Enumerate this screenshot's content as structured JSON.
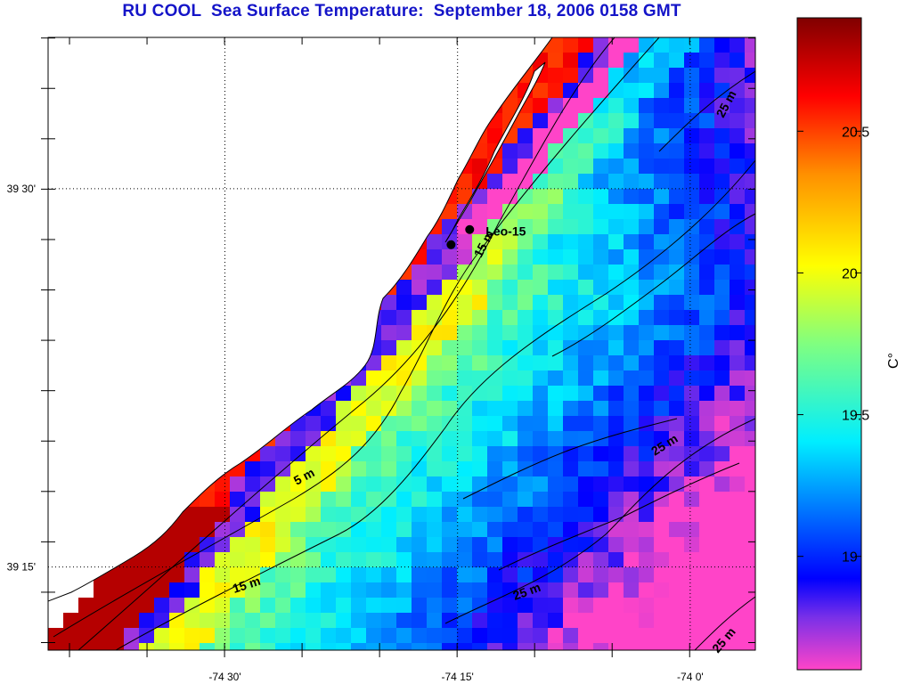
{
  "title": "RU COOL  Sea Surface Temperature:  September 18, 2006 0158 GMT",
  "map": {
    "lon_range": [
      -74.69,
      -73.93
    ],
    "lat_range": [
      39.195,
      39.6
    ],
    "lon_ticks": [
      {
        "value": -74.5,
        "label": "-74 30'"
      },
      {
        "value": -74.25,
        "label": "-74 15'"
      },
      {
        "value": -74.0,
        "label": "-74 0'"
      }
    ],
    "lat_ticks": [
      {
        "value": 39.5,
        "label": "39 30'"
      },
      {
        "value": 39.25,
        "label": "39 15'"
      }
    ],
    "grid": "dotted"
  },
  "stations": [
    {
      "name": "Leo-15",
      "lon": -74.237,
      "lat": 39.473,
      "show_label": true
    },
    {
      "name": "",
      "lon": -74.257,
      "lat": 39.463,
      "show_label": false
    }
  ],
  "station_label": "Leo-15",
  "isobath_labels": [
    {
      "text": "5 m"
    },
    {
      "text": "15 m"
    },
    {
      "text": "15 m"
    },
    {
      "text": "25 m"
    },
    {
      "text": "25 m"
    },
    {
      "text": "25 m"
    },
    {
      "text": "25 m"
    }
  ],
  "colorbar": {
    "min": 18.6,
    "max": 20.9,
    "ticks": [
      {
        "value": 20.5,
        "label": "20.5"
      },
      {
        "value": 20.0,
        "label": "20"
      },
      {
        "value": 19.5,
        "label": "19.5"
      },
      {
        "value": 19.0,
        "label": "19"
      }
    ],
    "unit": "C°",
    "colors": [
      "#ff44c8",
      "#6a2ae6",
      "#0000ff",
      "#0080ff",
      "#00f0ff",
      "#7fff80",
      "#ffff00",
      "#ff8800",
      "#ff0000",
      "#800000"
    ]
  }
}
